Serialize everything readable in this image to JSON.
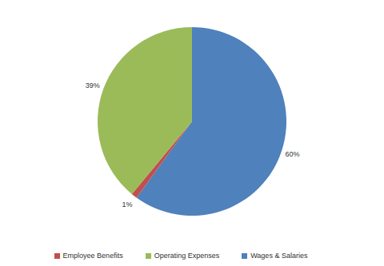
{
  "chart_data": {
    "type": "pie",
    "categories": [
      "Wages & Salaries",
      "Employee Benefits",
      "Operating Expenses"
    ],
    "values": [
      60,
      1,
      39
    ],
    "value_labels": [
      "60%",
      "1%",
      "39%"
    ],
    "colors": [
      "#4f81bd",
      "#c0504d",
      "#9bbb59"
    ],
    "data_labels": true,
    "legend": "bottom"
  }
}
